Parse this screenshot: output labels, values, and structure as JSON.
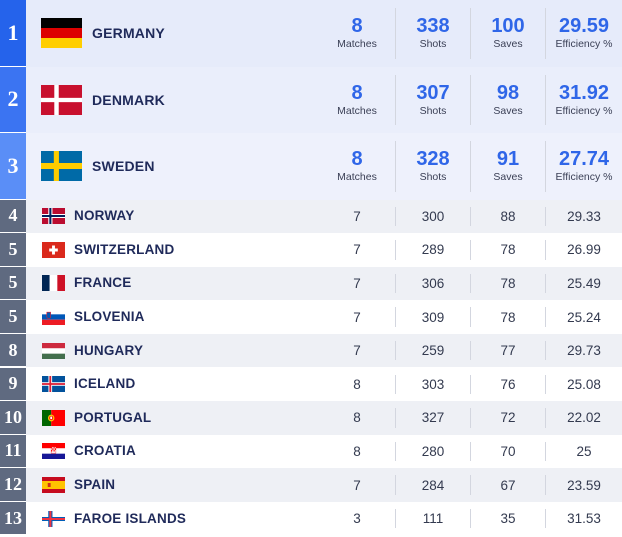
{
  "rows": [
    {
      "rank": "1",
      "country": "GERMANY",
      "flag": "germany-flag",
      "matches": "8",
      "shots": "338",
      "saves": "100",
      "efficiency": "29.59"
    },
    {
      "rank": "2",
      "country": "DENMARK",
      "flag": "denmark-flag",
      "matches": "8",
      "shots": "307",
      "saves": "98",
      "efficiency": "31.92"
    },
    {
      "rank": "3",
      "country": "SWEDEN",
      "flag": "sweden-flag",
      "matches": "8",
      "shots": "328",
      "saves": "91",
      "efficiency": "27.74"
    },
    {
      "rank": "4",
      "country": "NORWAY",
      "flag": "norway-flag",
      "matches": "7",
      "shots": "300",
      "saves": "88",
      "efficiency": "29.33"
    },
    {
      "rank": "5",
      "country": "SWITZERLAND",
      "flag": "switzerland-flag",
      "matches": "7",
      "shots": "289",
      "saves": "78",
      "efficiency": "26.99"
    },
    {
      "rank": "5",
      "country": "FRANCE",
      "flag": "france-flag",
      "matches": "7",
      "shots": "306",
      "saves": "78",
      "efficiency": "25.49"
    },
    {
      "rank": "5",
      "country": "SLOVENIA",
      "flag": "slovenia-flag",
      "matches": "7",
      "shots": "309",
      "saves": "78",
      "efficiency": "25.24"
    },
    {
      "rank": "8",
      "country": "HUNGARY",
      "flag": "hungary-flag",
      "matches": "7",
      "shots": "259",
      "saves": "77",
      "efficiency": "29.73"
    },
    {
      "rank": "9",
      "country": "ICELAND",
      "flag": "iceland-flag",
      "matches": "8",
      "shots": "303",
      "saves": "76",
      "efficiency": "25.08"
    },
    {
      "rank": "10",
      "country": "PORTUGAL",
      "flag": "portugal-flag",
      "matches": "8",
      "shots": "327",
      "saves": "72",
      "efficiency": "22.02"
    },
    {
      "rank": "11",
      "country": "CROATIA",
      "flag": "croatia-flag",
      "matches": "8",
      "shots": "280",
      "saves": "70",
      "efficiency": "25"
    },
    {
      "rank": "12",
      "country": "SPAIN",
      "flag": "spain-flag",
      "matches": "7",
      "shots": "284",
      "saves": "67",
      "efficiency": "23.59"
    },
    {
      "rank": "13",
      "country": "FAROE ISLANDS",
      "flag": "faroe-islands-flag",
      "matches": "3",
      "shots": "111",
      "saves": "35",
      "efficiency": "31.53"
    }
  ],
  "labels": {
    "matches": "Matches",
    "shots": "Shots",
    "saves": "Saves",
    "efficiency": "Efficiency %"
  },
  "colors": {
    "top_badges": [
      "#2563eb",
      "#3b74f2",
      "#5a8ef7"
    ],
    "rank_badge": "#5f6a80",
    "top_row_backgrounds": [
      "#e6ebfa",
      "#eaeefb",
      "#eef1fc"
    ],
    "row_even": "#eef0f5",
    "row_odd": "#ffffff",
    "value_highlight": "#2f66e8"
  }
}
